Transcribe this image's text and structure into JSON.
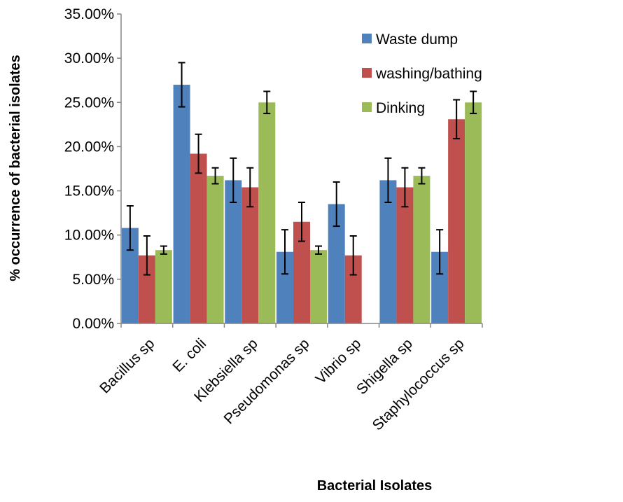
{
  "chart_data": {
    "type": "bar",
    "title": "",
    "xlabel": "Bacterial Isolates",
    "ylabel": "% occurrence of bacterial isolates",
    "categories": [
      "Bacillus sp",
      "E. coli",
      "Klebsiella sp",
      "Pseudomonas sp",
      "Vibrio sp",
      "Shigella  sp",
      "Staphylococcus sp"
    ],
    "ylim": [
      0,
      0.35
    ],
    "yticks": [
      0,
      0.05,
      0.1,
      0.15,
      0.2,
      0.25,
      0.3,
      0.35
    ],
    "ytick_labels": [
      "0.00%",
      "5.00%",
      "10.00%",
      "15.00%",
      "20.00%",
      "25.00%",
      "30.00%",
      "35.00%"
    ],
    "grid": false,
    "legend_position": "top-right",
    "series": [
      {
        "name": "Waste dump",
        "color": "#4f81bd",
        "values": [
          0.108,
          0.27,
          0.162,
          0.081,
          0.135,
          0.162,
          0.081
        ],
        "errors": [
          0.025,
          0.025,
          0.025,
          0.025,
          0.025,
          0.025,
          0.025
        ]
      },
      {
        "name": "washing/bathing",
        "color": "#c0504d",
        "values": [
          0.077,
          0.192,
          0.154,
          0.115,
          0.077,
          0.154,
          0.231
        ],
        "errors": [
          0.022,
          0.022,
          0.022,
          0.022,
          0.022,
          0.022,
          0.022
        ]
      },
      {
        "name": "Dinking",
        "color": "#9bbb59",
        "values": [
          0.083,
          0.167,
          0.25,
          0.083,
          null,
          0.167,
          0.25
        ],
        "errors": [
          0.0045,
          0.009,
          0.0125,
          0.0045,
          null,
          0.009,
          0.0125
        ]
      }
    ]
  }
}
